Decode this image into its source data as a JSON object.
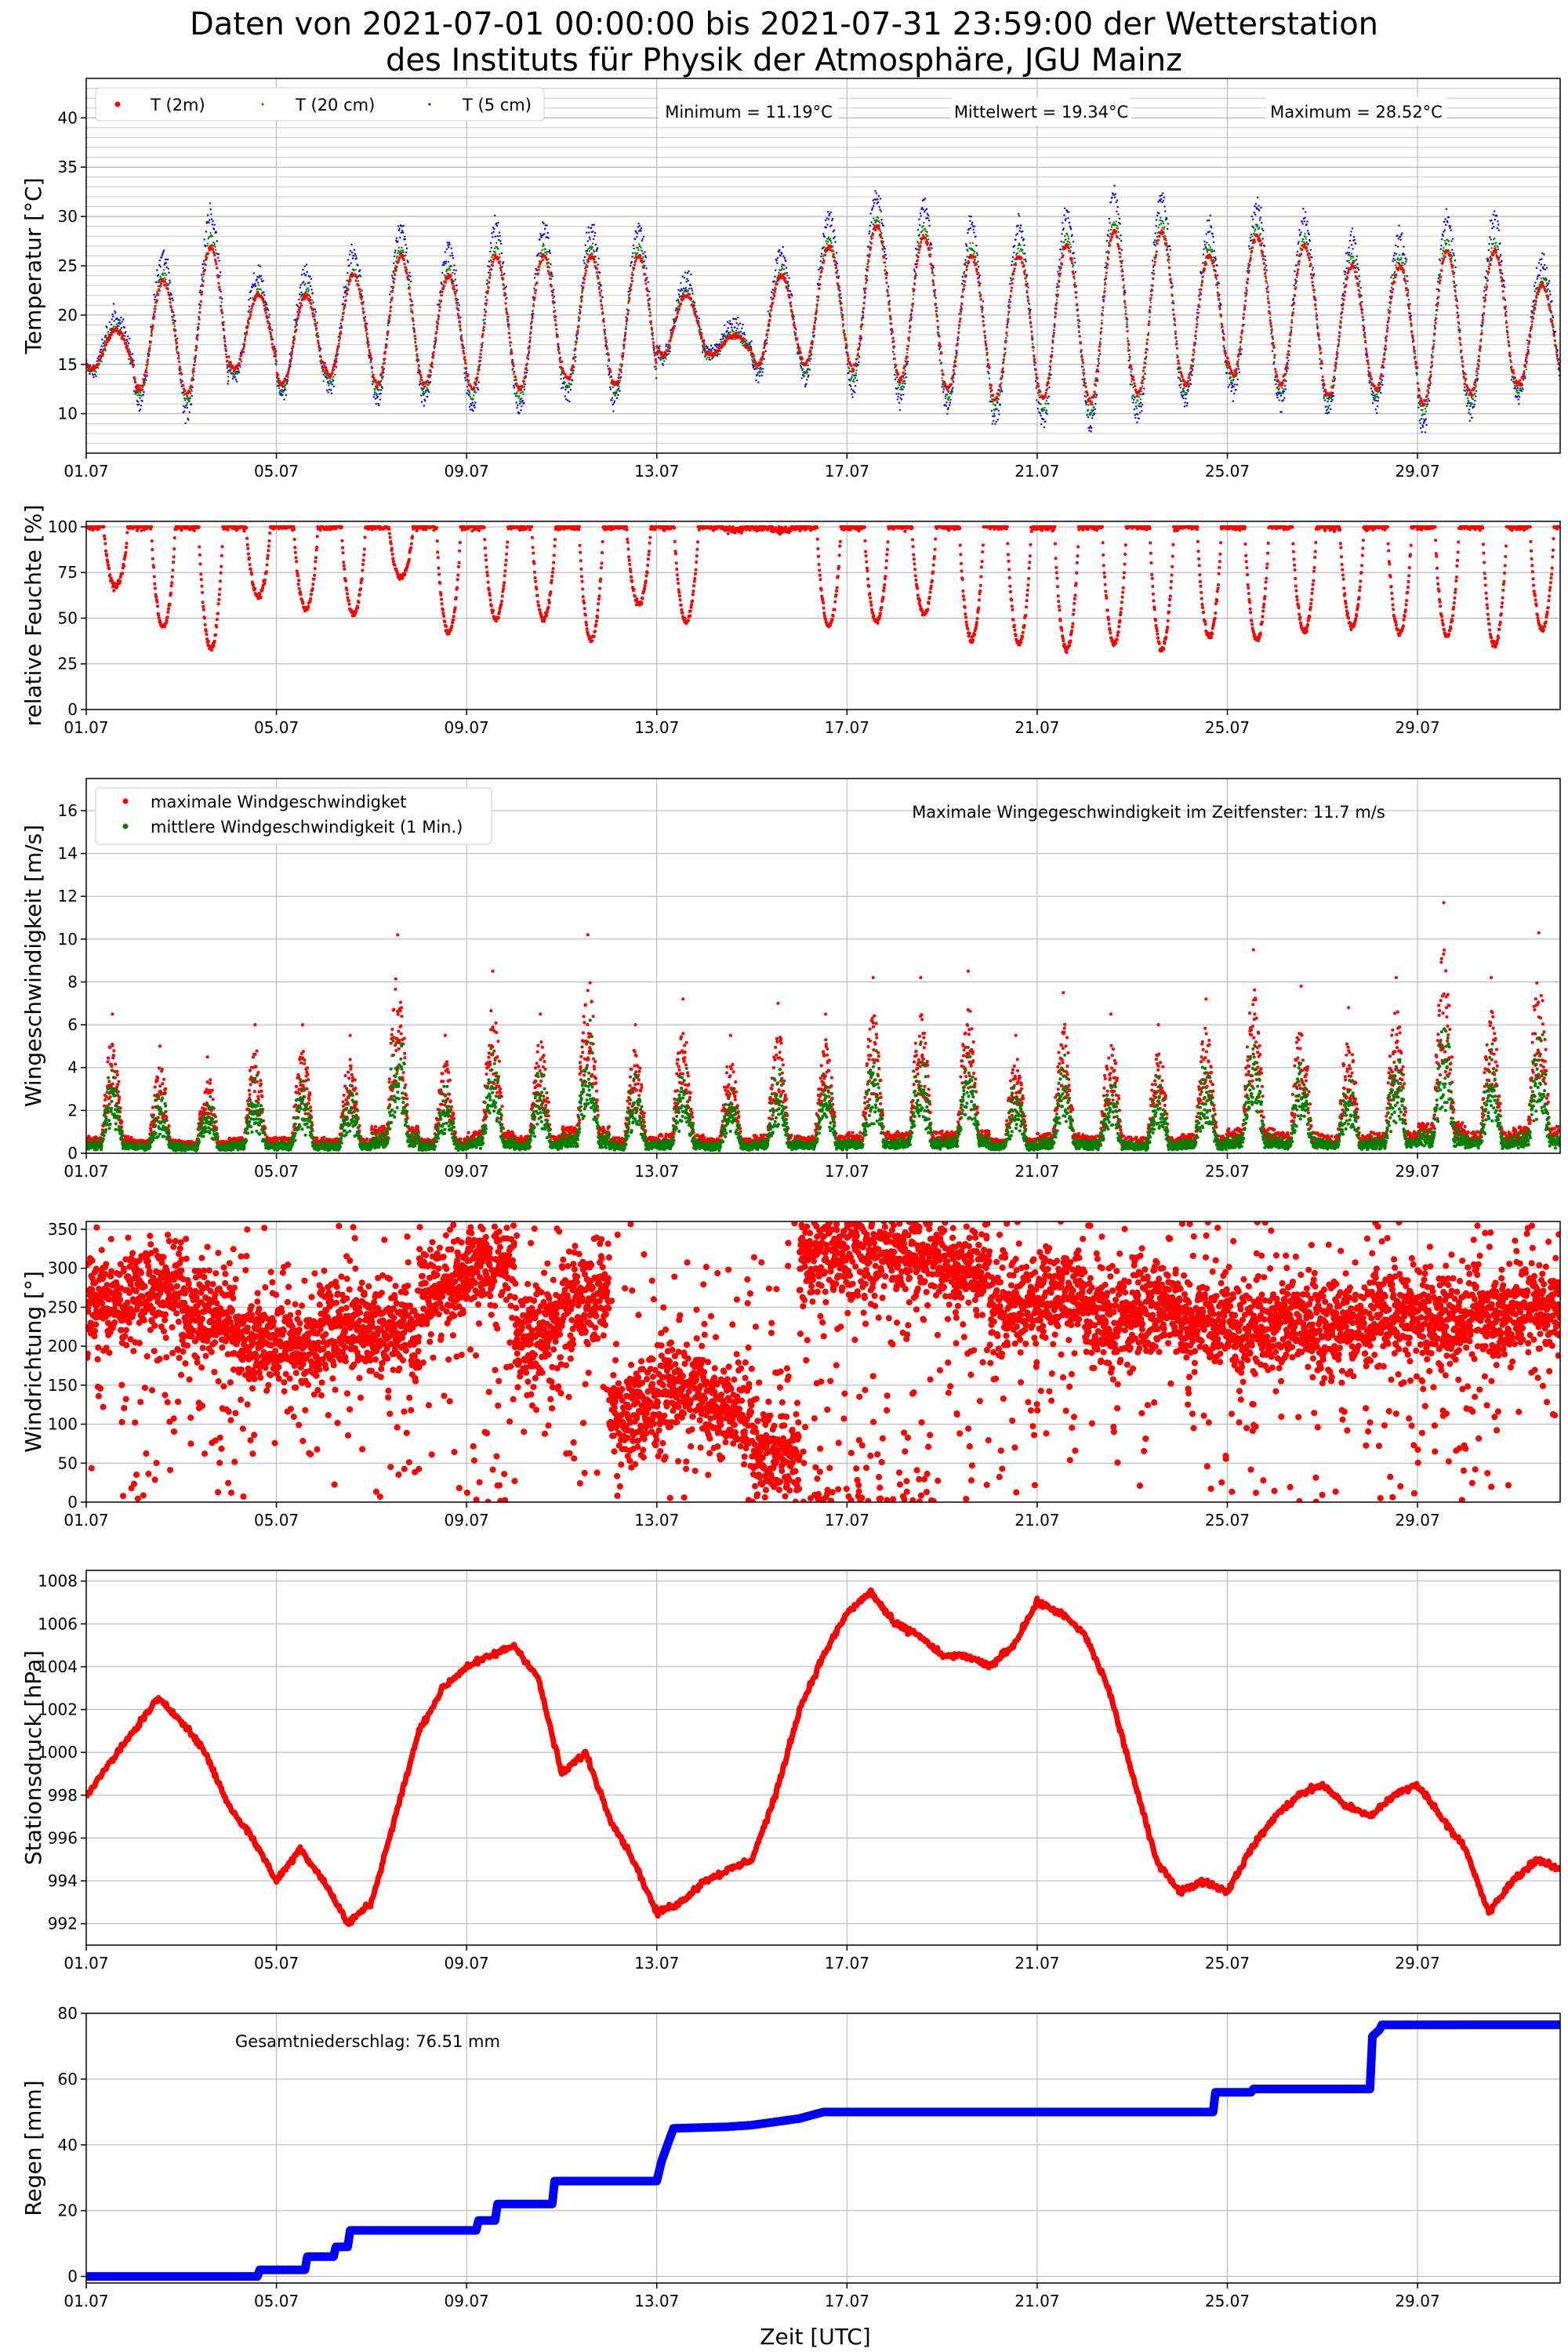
{
  "figure": {
    "title_line1": "Daten von 2021-07-01 00:00:00 bis 2021-07-31 23:59:00 der Wetterstation",
    "title_line2": "des Instituts für Physik der Atmosphäre, JGU Mainz",
    "xlabel": "Zeit [UTC]"
  },
  "chart_data": [
    {
      "id": "temperature",
      "type": "scatter",
      "ylabel": "Temperatur [°C]",
      "xlim": [
        1,
        32
      ],
      "ylim": [
        6,
        44
      ],
      "yticks": [
        10,
        15,
        20,
        25,
        30,
        35,
        40
      ],
      "xtick_labels": [
        "01.07",
        "05.07",
        "09.07",
        "13.07",
        "17.07",
        "21.07",
        "25.07",
        "29.07"
      ],
      "xtick_days": [
        1,
        5,
        9,
        13,
        17,
        21,
        25,
        29
      ],
      "grid": true,
      "minor_ygrid_step": 1,
      "legend_placement": "top-left",
      "annotations": {
        "minimum": "Minimum = 11.19°C",
        "mean": "Mittelwert = 19.34°C",
        "maximum": "Maximum = 28.52°C"
      },
      "daily_min_max_2m": [
        [
          14.5,
          18.5
        ],
        [
          12.5,
          23.5
        ],
        [
          12,
          27
        ],
        [
          14.5,
          22
        ],
        [
          13,
          22
        ],
        [
          14,
          24
        ],
        [
          13,
          26
        ],
        [
          13,
          24
        ],
        [
          12.5,
          26
        ],
        [
          12.5,
          26
        ],
        [
          13.5,
          26
        ],
        [
          13,
          26
        ],
        [
          16,
          22
        ],
        [
          16,
          18
        ],
        [
          15,
          24
        ],
        [
          15,
          27
        ],
        [
          14.5,
          29
        ],
        [
          13.5,
          28
        ],
        [
          12.5,
          26
        ],
        [
          11.5,
          26
        ],
        [
          11.5,
          27
        ],
        [
          11.2,
          28.5
        ],
        [
          12,
          28.5
        ],
        [
          13,
          26
        ],
        [
          14,
          28
        ],
        [
          13,
          27
        ],
        [
          12,
          25
        ],
        [
          12.5,
          25
        ],
        [
          11,
          26.5
        ],
        [
          12,
          26.5
        ],
        [
          13,
          23
        ]
      ],
      "series": [
        {
          "name": "T (2m)",
          "color": "#ff0000",
          "shown_min": 11.19,
          "shown_mean": 19.34,
          "shown_max": 28.52
        },
        {
          "name": "T (20 cm)",
          "color": "#008000"
        },
        {
          "name": "T (5 cm)",
          "color": "#0000ff"
        }
      ]
    },
    {
      "id": "humidity",
      "type": "scatter",
      "ylabel": "relative Feuchte [%]",
      "xlim": [
        1,
        32
      ],
      "ylim": [
        0,
        103
      ],
      "yticks": [
        0,
        25,
        50,
        75,
        100
      ],
      "grid": true,
      "daily_min": [
        67,
        45,
        33,
        62,
        55,
        52,
        72,
        42,
        50,
        50,
        38,
        58,
        48,
        98,
        98,
        46,
        48,
        52,
        38,
        36,
        33,
        36,
        33,
        40,
        38,
        43,
        45,
        42,
        40,
        35,
        44
      ],
      "series": [
        {
          "name": "relative Feuchte",
          "color": "#ff0000"
        }
      ]
    },
    {
      "id": "wind_speed",
      "type": "scatter",
      "ylabel": "Wingeschwindigkeit [m/s]",
      "xlim": [
        1,
        32
      ],
      "ylim": [
        0,
        17.5
      ],
      "yticks": [
        0,
        2,
        4,
        6,
        8,
        10,
        12,
        14,
        16
      ],
      "grid": true,
      "legend_placement": "top-left",
      "annotation": "Maximale Wingegeschwindigkeit im Zeitfenster: 11.7 m/s",
      "max_gust": 11.7,
      "daily_peak_gust": [
        6.5,
        5,
        4.5,
        6,
        6,
        5.5,
        10.2,
        5.5,
        8.5,
        6.5,
        10.2,
        6,
        7.2,
        5.5,
        7,
        6.5,
        8.2,
        8.2,
        8.5,
        5.5,
        7.5,
        6.5,
        6,
        7.2,
        9.5,
        7.8,
        6.8,
        8.2,
        11.7,
        8.2,
        10.3
      ],
      "series": [
        {
          "name": "maximale Windgeschwindigket",
          "color": "#ff0000"
        },
        {
          "name": "mittlere Windgeschwindigkeit (1 Min.)",
          "color": "#008000"
        }
      ]
    },
    {
      "id": "wind_direction",
      "type": "scatter",
      "ylabel": "Windrichtung [°]",
      "xlim": [
        1,
        32
      ],
      "ylim": [
        0,
        360
      ],
      "yticks": [
        0,
        50,
        100,
        150,
        200,
        250,
        300,
        350
      ],
      "grid": true,
      "daily_mean_direction": [
        260,
        270,
        240,
        210,
        200,
        230,
        220,
        280,
        300,
        220,
        260,
        120,
        150,
        120,
        60,
        320,
        320,
        320,
        300,
        250,
        270,
        230,
        250,
        230,
        220,
        230,
        230,
        240,
        230,
        240,
        250
      ],
      "series": [
        {
          "name": "Windrichtung",
          "color": "#ff0000"
        }
      ]
    },
    {
      "id": "pressure",
      "type": "line",
      "ylabel": "Stationsdruck [hPa]",
      "xlim": [
        1,
        32
      ],
      "ylim": [
        991,
        1008.5
      ],
      "yticks": [
        992,
        994,
        996,
        998,
        1000,
        1002,
        1004,
        1006,
        1008
      ],
      "grid": true,
      "x": [
        1,
        1.5,
        2,
        2.5,
        3,
        3.5,
        4,
        4.5,
        5,
        5.5,
        6,
        6.5,
        7,
        7.5,
        8,
        8.5,
        9,
        9.5,
        10,
        10.5,
        11,
        11.5,
        12,
        12.5,
        13,
        13.5,
        14,
        14.5,
        15,
        15.5,
        16,
        16.5,
        17,
        17.5,
        18,
        18.5,
        19,
        19.5,
        20,
        20.5,
        21,
        21.5,
        22,
        22.5,
        23,
        23.5,
        24,
        24.5,
        25,
        25.5,
        26,
        26.5,
        27,
        27.5,
        28,
        28.5,
        29,
        29.5,
        30,
        30.5,
        31,
        31.5,
        32
      ],
      "y": [
        998,
        999.5,
        1001,
        1002.5,
        1001.5,
        1000,
        997.5,
        996,
        994,
        995.5,
        994,
        992,
        993,
        997,
        1001,
        1003,
        1004,
        1004.5,
        1005,
        1003.5,
        999,
        1000,
        997,
        995,
        992.5,
        993,
        994,
        994.5,
        995,
        998,
        1002,
        1004.5,
        1006.5,
        1007.5,
        1006,
        1005.5,
        1004.5,
        1004.5,
        1004,
        1005,
        1007,
        1006.5,
        1005.5,
        1003,
        999,
        995,
        993.5,
        994,
        993.5,
        995.5,
        997,
        998,
        998.5,
        997.5,
        997,
        998,
        998.5,
        997,
        995.5,
        992.5,
        994,
        995,
        994.5
      ],
      "series": [
        {
          "name": "Stationsdruck",
          "color": "#ff0000"
        }
      ]
    },
    {
      "id": "rain",
      "type": "line",
      "ylabel": "Regen [mm]",
      "xlim": [
        1,
        32
      ],
      "ylim": [
        -2,
        80
      ],
      "yticks": [
        0,
        20,
        40,
        60,
        80
      ],
      "grid": true,
      "annotation": "Gesamtniederschlag: 76.51 mm",
      "total": 76.51,
      "x": [
        1,
        4.6,
        4.65,
        5.6,
        5.65,
        6.2,
        6.25,
        6.5,
        6.55,
        9.2,
        9.25,
        9.6,
        9.65,
        10.8,
        10.85,
        13.0,
        13.1,
        13.3,
        13.35,
        14.5,
        15.0,
        15.5,
        16.0,
        16.5,
        24.7,
        24.75,
        25.5,
        25.55,
        28.0,
        28.05,
        28.2,
        28.25,
        32
      ],
      "y": [
        0,
        0,
        2,
        2,
        6,
        6,
        9,
        9,
        14,
        14,
        17,
        17,
        22,
        22,
        29,
        29,
        35,
        43,
        45,
        45.5,
        46,
        47,
        48,
        50,
        50,
        56,
        56,
        57,
        57,
        73,
        75,
        76.5,
        76.51
      ],
      "series": [
        {
          "name": "Gesamtniederschlag",
          "color": "#0000ff"
        }
      ]
    }
  ]
}
